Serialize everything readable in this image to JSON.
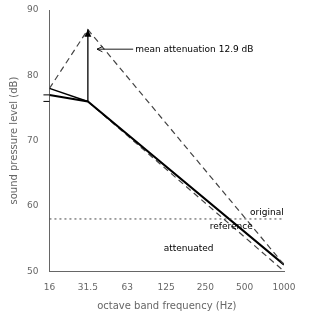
{
  "chart_data": {
    "type": "line",
    "xlabel": "octave band frequency (Hz)",
    "ylabel": "sound pressure level (dB)",
    "log": "x",
    "xlim": [
      16,
      1000
    ],
    "xticks": [
      16,
      31.5,
      63,
      125,
      250,
      500,
      1000
    ],
    "ylim": [
      50,
      90
    ],
    "yticks": [
      50,
      60,
      70,
      80,
      90
    ],
    "grid": false,
    "series": [
      {
        "name": "original",
        "x": [
          16,
          31.5,
          1000
        ],
        "values": [
          78,
          87,
          51
        ],
        "line_style": "dashed",
        "color": "#444444",
        "label_x": 550,
        "label_y": 59.0
      },
      {
        "name": "reference",
        "x": [
          16,
          31.5,
          1000
        ],
        "values": [
          77,
          76,
          51
        ],
        "line_style": "solid",
        "color": "#000000",
        "label_x": 270,
        "label_y": 56.8
      },
      {
        "name": "attenuated",
        "x": [
          31.5,
          1000
        ],
        "values": [
          76,
          50
        ],
        "line_style": "dashed",
        "color": "#444444",
        "label_x": 120,
        "label_y": 53.5
      }
    ],
    "hlines": [
      {
        "y": 58.0,
        "line_style": "dotted",
        "color": "#444444"
      }
    ],
    "arrows": [
      {
        "x": 31.5,
        "from": 76,
        "to": 87
      }
    ],
    "segments": [
      {
        "x": [
          31.5,
          16
        ],
        "y": [
          76,
          78
        ]
      }
    ],
    "y_marks": [
      77,
      76
    ],
    "annotations": [
      {
        "text": "mean attenuation 12.9 dB",
        "x": 70,
        "y": 84,
        "arrow_to_x": 37,
        "arrow_to_y": 84
      }
    ]
  }
}
